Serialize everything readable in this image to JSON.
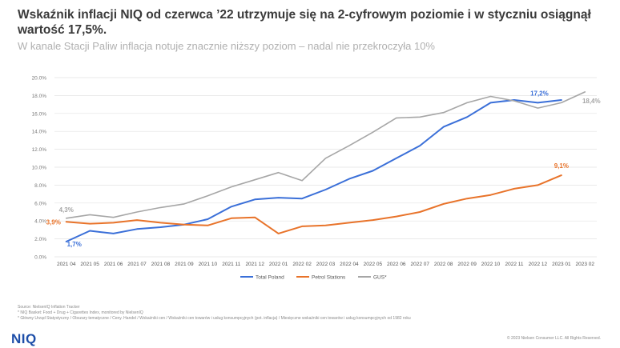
{
  "header": {
    "title": "Wskaźnik inflacji NIQ od czerwca ’22 utrzymuje się na 2-cyfrowym poziomie i w styczniu osiągnął wartość 17,5%.",
    "subtitle": "W kanale Stacji Paliw inflacja notuje znacznie niższy poziom – nadal nie przekroczyła 10%"
  },
  "chart_data": {
    "type": "line",
    "categories": [
      "2021 04",
      "2021 05",
      "2021 06",
      "2021 07",
      "2021 08",
      "2021 09",
      "2021 10",
      "2021 11",
      "2021 12",
      "2022 01",
      "2022 02",
      "2022 03",
      "2022 04",
      "2022 05",
      "2022 06",
      "2022 07",
      "2022 08",
      "2022 09",
      "2022 10",
      "2022 11",
      "2022 12",
      "2023 01",
      "2023 02"
    ],
    "yticks": [
      "0.0%",
      "2.0%",
      "4.0%",
      "6.0%",
      "8.0%",
      "10.0%",
      "12.0%",
      "14.0%",
      "16.0%",
      "18.0%",
      "20.0%"
    ],
    "ylim": [
      0,
      20
    ],
    "grid": true,
    "legend_position": "bottom",
    "series": [
      {
        "name": "Total Poland",
        "color": "#3a6fd8",
        "values": [
          1.7,
          2.9,
          2.6,
          3.1,
          3.3,
          3.6,
          4.2,
          5.6,
          6.4,
          6.6,
          6.5,
          7.5,
          8.7,
          9.6,
          11.0,
          12.4,
          14.5,
          15.6,
          17.2,
          17.5,
          17.2,
          17.5,
          null
        ]
      },
      {
        "name": "Petrol Stations",
        "color": "#e8732a",
        "values": [
          3.9,
          3.7,
          3.8,
          4.1,
          3.8,
          3.6,
          3.5,
          4.3,
          4.4,
          2.6,
          3.4,
          3.5,
          3.8,
          4.1,
          4.5,
          5.0,
          5.9,
          6.5,
          6.9,
          7.6,
          8.0,
          9.1,
          null
        ]
      },
      {
        "name": "GUS*",
        "color": "#a6a6a6",
        "values": [
          4.3,
          4.7,
          4.4,
          5.0,
          5.5,
          5.9,
          6.8,
          7.8,
          8.6,
          9.4,
          8.5,
          11.0,
          12.4,
          13.9,
          15.5,
          15.6,
          16.1,
          17.2,
          17.9,
          17.4,
          16.6,
          17.2,
          18.4
        ]
      }
    ],
    "annotations": [
      {
        "text": "4,3%",
        "series": 2,
        "index": 0,
        "color": "#a6a6a6"
      },
      {
        "text": "3,9%",
        "series": 1,
        "index": 0,
        "color": "#e8732a"
      },
      {
        "text": "1,7%",
        "series": 0,
        "index": 0,
        "color": "#3a6fd8"
      },
      {
        "text": "17,2%",
        "series": 0,
        "index": 20,
        "color": "#3a6fd8"
      },
      {
        "text": "18,4%",
        "series": 2,
        "index": 22,
        "color": "#a6a6a6"
      },
      {
        "text": "9,1%",
        "series": 1,
        "index": 21,
        "color": "#e8732a"
      }
    ]
  },
  "footer": {
    "sources": [
      "Source: NielsenIQ Inflation Tracker",
      "* NIQ Basket: Food + Drug + Cigarettes Index, monitored by NielsenIQ",
      "* Główny Urząd Statystyczny / Obszary tematyczne / Ceny. Handel / Wskaźniki cen / Wskaźniki cen towarów i usług konsumpcyjnych (pot. inflacja) / Miesięczne wskaźniki cen towarów i usług konsumpcyjnych od 1982 roku"
    ],
    "logo": "NIQ",
    "copyright": "© 2023 Nielsen Consumer LLC. All Rights Reserved."
  }
}
